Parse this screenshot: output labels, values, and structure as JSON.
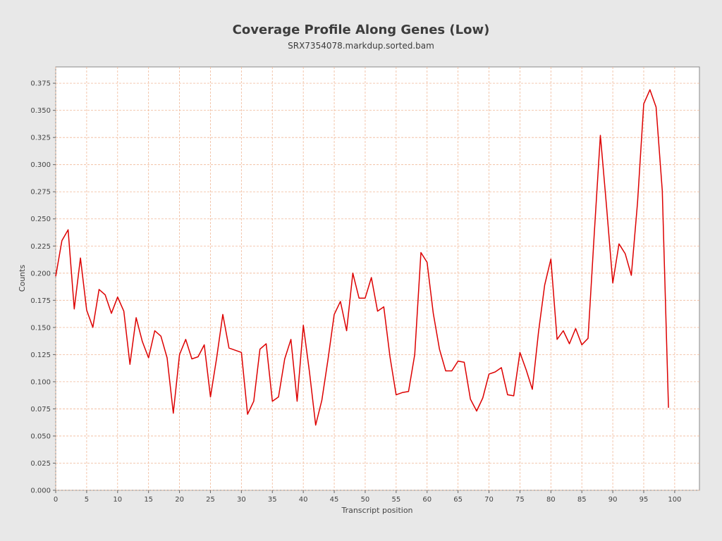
{
  "chart_data": {
    "type": "line",
    "title": "Coverage Profile Along Genes (Low)",
    "subtitle": "SRX7354078.markdup.sorted.bam",
    "xlabel": "Transcript position",
    "ylabel": "Counts",
    "xlim": [
      0,
      104
    ],
    "ylim": [
      0,
      0.39
    ],
    "x_ticks": [
      0,
      5,
      10,
      15,
      20,
      25,
      30,
      35,
      40,
      45,
      50,
      55,
      60,
      65,
      70,
      75,
      80,
      85,
      90,
      95,
      100
    ],
    "y_ticks": [
      "0.000",
      "0.025",
      "0.050",
      "0.075",
      "0.100",
      "0.125",
      "0.150",
      "0.175",
      "0.200",
      "0.225",
      "0.250",
      "0.275",
      "0.300",
      "0.325",
      "0.350",
      "0.375"
    ],
    "grid": true,
    "line_color": "#dd0000",
    "grid_color": "#f0b898",
    "series": [
      {
        "x": [
          0,
          1,
          2,
          3,
          4,
          5,
          6,
          7,
          8,
          9,
          10,
          11,
          12,
          13,
          14,
          15,
          16,
          17,
          18,
          19,
          20,
          21,
          22,
          23,
          24,
          25,
          26,
          27,
          28,
          29,
          30,
          31,
          32,
          33,
          34,
          35,
          36,
          37,
          38,
          39,
          40,
          41,
          42,
          43,
          44,
          45,
          46,
          47,
          48,
          49,
          50,
          51,
          52,
          53,
          54,
          55,
          56,
          57,
          58,
          59,
          60,
          61,
          62,
          63,
          64,
          65,
          66,
          67,
          68,
          69,
          70,
          71,
          72,
          73,
          74,
          75,
          76,
          77,
          78,
          79,
          80,
          81,
          82,
          83,
          84,
          85,
          86,
          87,
          88,
          89,
          90,
          91,
          92,
          93,
          94,
          95,
          96,
          97,
          98,
          99
        ],
        "y": [
          0.197,
          0.23,
          0.24,
          0.167,
          0.214,
          0.166,
          0.15,
          0.185,
          0.18,
          0.163,
          0.178,
          0.165,
          0.116,
          0.159,
          0.137,
          0.122,
          0.147,
          0.142,
          0.122,
          0.071,
          0.125,
          0.139,
          0.121,
          0.123,
          0.134,
          0.086,
          0.122,
          0.162,
          0.131,
          0.129,
          0.127,
          0.07,
          0.082,
          0.13,
          0.135,
          0.082,
          0.086,
          0.121,
          0.139,
          0.082,
          0.152,
          0.109,
          0.06,
          0.083,
          0.121,
          0.162,
          0.174,
          0.147,
          0.2,
          0.177,
          0.177,
          0.196,
          0.165,
          0.169,
          0.123,
          0.088,
          0.09,
          0.091,
          0.125,
          0.219,
          0.21,
          0.163,
          0.13,
          0.11,
          0.11,
          0.119,
          0.118,
          0.084,
          0.073,
          0.085,
          0.107,
          0.109,
          0.113,
          0.088,
          0.087,
          0.127,
          0.111,
          0.093,
          0.146,
          0.189,
          0.213,
          0.139,
          0.147,
          0.135,
          0.149,
          0.134,
          0.14,
          0.236,
          0.327,
          0.261,
          0.191,
          0.227,
          0.218,
          0.198,
          0.265,
          0.356,
          0.369,
          0.353,
          0.276,
          0.076
        ]
      }
    ]
  }
}
